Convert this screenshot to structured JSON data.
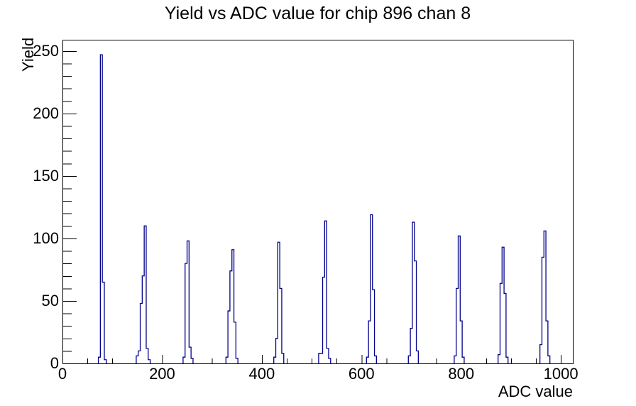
{
  "window": {
    "background": "#ffffff"
  },
  "title": "Yield vs ADC value for chip 896 chan 8",
  "axes": {
    "x_title": "ADC value",
    "y_title": "Yield"
  },
  "colors": {
    "hist_line": "#00008b",
    "hist_fill": "#ffffff",
    "frame": "#000000",
    "tick": "#000000",
    "text": "#000000",
    "background": "#ffffff"
  },
  "chart_data": {
    "type": "bar",
    "title": "Yield vs ADC value for chip 896 chan 8",
    "xlabel": "ADC value",
    "ylabel": "Yield",
    "xlim": [
      0,
      1024
    ],
    "ylim": [
      0,
      259
    ],
    "grid": false,
    "legend": false,
    "x_major_ticks": [
      0,
      200,
      400,
      600,
      800,
      1000
    ],
    "x_tick_labels": [
      "0",
      "200",
      "400",
      "600",
      "800",
      "1000"
    ],
    "x_minor_step": 50,
    "y_major_ticks": [
      0,
      50,
      100,
      150,
      200,
      250
    ],
    "y_tick_labels": [
      "0",
      "50",
      "100",
      "150",
      "200",
      "250"
    ],
    "y_minor_step": 10,
    "bin_width": 4,
    "bins": [
      [
        72,
        5
      ],
      [
        76,
        247
      ],
      [
        80,
        65
      ],
      [
        84,
        3
      ],
      [
        148,
        6
      ],
      [
        152,
        10
      ],
      [
        156,
        48
      ],
      [
        160,
        70
      ],
      [
        164,
        110
      ],
      [
        168,
        12
      ],
      [
        172,
        3
      ],
      [
        242,
        5
      ],
      [
        246,
        80
      ],
      [
        250,
        98
      ],
      [
        254,
        13
      ],
      [
        258,
        4
      ],
      [
        328,
        5
      ],
      [
        332,
        42
      ],
      [
        336,
        74
      ],
      [
        340,
        91
      ],
      [
        344,
        33
      ],
      [
        348,
        4
      ],
      [
        424,
        5
      ],
      [
        428,
        20
      ],
      [
        432,
        97
      ],
      [
        436,
        60
      ],
      [
        440,
        8
      ],
      [
        514,
        8
      ],
      [
        518,
        8
      ],
      [
        522,
        69
      ],
      [
        526,
        114
      ],
      [
        530,
        12
      ],
      [
        534,
        4
      ],
      [
        610,
        5
      ],
      [
        614,
        34
      ],
      [
        618,
        119
      ],
      [
        622,
        59
      ],
      [
        626,
        6
      ],
      [
        694,
        6
      ],
      [
        698,
        28
      ],
      [
        702,
        113
      ],
      [
        706,
        82
      ],
      [
        710,
        10
      ],
      [
        786,
        6
      ],
      [
        790,
        60
      ],
      [
        794,
        102
      ],
      [
        798,
        34
      ],
      [
        802,
        5
      ],
      [
        874,
        7
      ],
      [
        878,
        64
      ],
      [
        882,
        93
      ],
      [
        886,
        56
      ],
      [
        890,
        5
      ],
      [
        958,
        15
      ],
      [
        962,
        85
      ],
      [
        966,
        106
      ],
      [
        970,
        34
      ],
      [
        974,
        6
      ]
    ],
    "peaks": [
      {
        "adc": 78,
        "yield": 247
      },
      {
        "adc": 166,
        "yield": 110
      },
      {
        "adc": 252,
        "yield": 98
      },
      {
        "adc": 342,
        "yield": 91
      },
      {
        "adc": 434,
        "yield": 97
      },
      {
        "adc": 528,
        "yield": 114
      },
      {
        "adc": 620,
        "yield": 119
      },
      {
        "adc": 704,
        "yield": 113
      },
      {
        "adc": 796,
        "yield": 102
      },
      {
        "adc": 884,
        "yield": 93
      },
      {
        "adc": 968,
        "yield": 106
      }
    ]
  }
}
